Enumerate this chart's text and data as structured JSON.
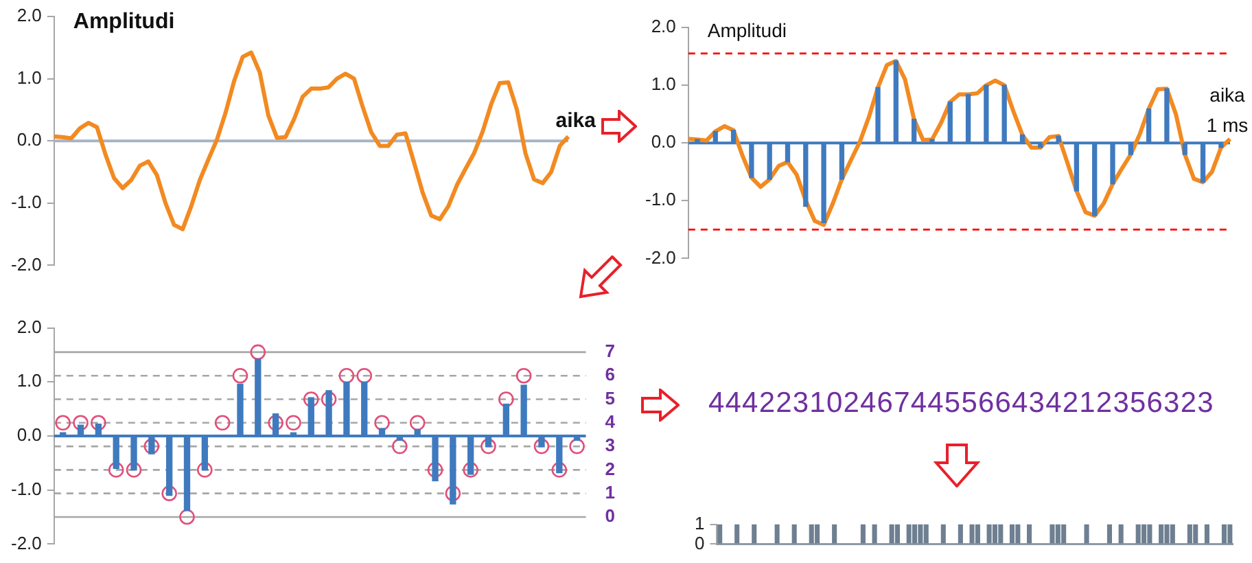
{
  "chart_data": [
    {
      "type": "line",
      "title": "Amplitudi",
      "xlabel": "aika",
      "color": "#f28a22",
      "marker": "none",
      "categories": [
        null,
        null,
        null,
        null,
        null,
        null,
        null,
        null,
        null,
        null,
        null,
        null,
        null,
        null,
        null,
        null,
        null,
        null,
        null,
        null,
        null,
        null,
        null,
        null,
        null,
        null,
        null,
        null,
        null,
        null,
        null,
        null,
        null,
        null,
        null,
        null,
        null,
        null,
        null,
        null,
        null,
        null,
        null,
        null,
        null,
        null,
        null,
        null,
        null,
        null,
        null,
        null,
        null,
        null,
        null,
        null,
        null,
        null,
        null,
        null,
        null
      ],
      "values": [
        0.07,
        0.06,
        0.04,
        0.2,
        0.29,
        0.22,
        -0.22,
        -0.6,
        -0.76,
        -0.63,
        -0.4,
        -0.33,
        -0.55,
        -1.0,
        -1.35,
        -1.42,
        -1.05,
        -0.63,
        -0.3,
        0.02,
        0.45,
        0.96,
        1.35,
        1.42,
        1.1,
        0.41,
        0.05,
        0.06,
        0.35,
        0.71,
        0.84,
        0.84,
        0.86,
        1.0,
        1.08,
        1.0,
        0.55,
        0.14,
        -0.08,
        -0.08,
        0.1,
        0.12,
        -0.35,
        -0.83,
        -1.2,
        -1.26,
        -1.05,
        -0.71,
        -0.45,
        -0.2,
        0.15,
        0.59,
        0.93,
        0.94,
        0.5,
        -0.2,
        -0.62,
        -0.68,
        -0.5,
        -0.08,
        0.07
      ],
      "ref_lines": [
        {
          "axis": "y",
          "value": 0,
          "color": "#a6b4c4",
          "line_style": "solid"
        }
      ],
      "ylim": [
        -2,
        2
      ],
      "yticks": [
        {
          "value": -2,
          "label": "-2.0"
        },
        {
          "value": -1,
          "label": "-1.0"
        },
        {
          "value": 0,
          "label": "0.0"
        },
        {
          "value": 1,
          "label": "1.0"
        },
        {
          "value": 2,
          "label": "2.0"
        }
      ],
      "tick_labels": "y",
      "grid": false,
      "legend": false
    },
    {
      "type": "line",
      "title": "Amplitudi",
      "xlabel": "aika\n1 ms",
      "marker": "none",
      "categories": [
        null,
        null,
        null,
        null,
        null,
        null,
        null,
        null,
        null,
        null,
        null,
        null,
        null,
        null,
        null,
        null,
        null,
        null,
        null,
        null,
        null,
        null,
        null,
        null,
        null,
        null,
        null,
        null,
        null,
        null,
        null,
        null,
        null,
        null,
        null,
        null,
        null,
        null,
        null,
        null,
        null,
        null,
        null,
        null,
        null,
        null,
        null,
        null,
        null,
        null,
        null,
        null,
        null,
        null,
        null,
        null,
        null,
        null,
        null,
        null,
        null
      ],
      "series": [
        {
          "type": "bar",
          "color": "#3f7abf",
          "values": [
            null,
            0.06,
            null,
            0.2,
            null,
            0.22,
            null,
            -0.6,
            null,
            -0.63,
            null,
            -0.33,
            null,
            -1.1,
            null,
            -1.38,
            null,
            -0.63,
            null,
            null,
            null,
            0.96,
            null,
            1.42,
            null,
            0.41,
            null,
            0.06,
            null,
            0.71,
            null,
            0.84,
            null,
            1,
            null,
            1,
            null,
            0.14,
            null,
            -0.08,
            null,
            0.12,
            null,
            -0.83,
            null,
            -1.26,
            null,
            -0.71,
            null,
            -0.2,
            null,
            0.59,
            null,
            0.94,
            null,
            -0.2,
            null,
            -0.68,
            null,
            -0.08,
            null
          ]
        },
        {
          "type": "line",
          "color": "#f28a22",
          "values": [
            0.07,
            0.06,
            0.04,
            0.2,
            0.29,
            0.22,
            -0.22,
            -0.6,
            -0.76,
            -0.63,
            -0.4,
            -0.33,
            -0.55,
            -1.0,
            -1.35,
            -1.42,
            -1.05,
            -0.63,
            -0.3,
            0.02,
            0.45,
            0.96,
            1.35,
            1.42,
            1.1,
            0.41,
            0.05,
            0.06,
            0.35,
            0.71,
            0.84,
            0.84,
            0.86,
            1.0,
            1.08,
            1.0,
            0.55,
            0.14,
            -0.08,
            -0.08,
            0.1,
            0.12,
            -0.35,
            -0.83,
            -1.2,
            -1.26,
            -1.05,
            -0.71,
            -0.45,
            -0.2,
            0.15,
            0.59,
            0.93,
            0.94,
            0.5,
            -0.2,
            -0.62,
            -0.68,
            -0.5,
            -0.08,
            0.07
          ]
        }
      ],
      "ref_lines": [
        {
          "axis": "y",
          "value": 0,
          "color": "#3f7abf",
          "line_style": "solid"
        },
        {
          "axis": "y",
          "value": 1.55,
          "color": "#ff0000",
          "line_style": "dashed"
        },
        {
          "axis": "y",
          "value": -1.5,
          "color": "#ff0000",
          "line_style": "dashed"
        }
      ],
      "ylim": [
        -2,
        2
      ],
      "yticks": [
        {
          "value": -2,
          "label": "-2.0"
        },
        {
          "value": -1,
          "label": "-1.0"
        },
        {
          "value": 0,
          "label": "0.0"
        },
        {
          "value": 1,
          "label": "1.0"
        },
        {
          "value": 2,
          "label": "2.0"
        }
      ],
      "tick_labels": "y",
      "grid": false,
      "legend": false
    },
    {
      "type": "bar",
      "marker": "circle",
      "categories": [
        null,
        null,
        null,
        null,
        null,
        null,
        null,
        null,
        null,
        null,
        null,
        null,
        null,
        null,
        null,
        null,
        null,
        null,
        null,
        null,
        null,
        null,
        null,
        null,
        null,
        null,
        null,
        null,
        null,
        null
      ],
      "series": [
        {
          "type": "bar",
          "color": "#3f7abf",
          "values": [
            0.06,
            0.2,
            0.22,
            -0.6,
            -0.63,
            -0.33,
            -1.1,
            -1.38,
            -0.63,
            null,
            0.96,
            1.42,
            0.41,
            0.06,
            0.71,
            0.84,
            1,
            1,
            0.14,
            -0.08,
            0.12,
            -0.83,
            -1.26,
            -0.71,
            -0.2,
            0.59,
            0.94,
            -0.2,
            -0.68,
            -0.08
          ]
        },
        {
          "type": "scatter",
          "color": "#e0507a",
          "axis": "y2",
          "values": [
            4,
            4,
            4,
            2,
            2,
            3,
            1,
            0,
            2,
            4,
            6,
            7,
            4,
            4,
            5,
            5,
            6,
            6,
            4,
            3,
            4,
            2,
            1,
            2,
            3,
            5,
            6,
            3,
            2,
            3
          ]
        }
      ],
      "ref_lines": [
        {
          "axis": "y2",
          "value": 0,
          "color": "#a6a6a6",
          "line_style": "solid"
        },
        {
          "axis": "y2",
          "value": 1,
          "color": "#a6a6a6",
          "line_style": "dashed"
        },
        {
          "axis": "y2",
          "value": 2,
          "color": "#a6a6a6",
          "line_style": "dashed"
        },
        {
          "axis": "y2",
          "value": 3,
          "color": "#a6a6a6",
          "line_style": "dashed"
        },
        {
          "axis": "y2",
          "value": 4,
          "color": "#a6a6a6",
          "line_style": "dashed"
        },
        {
          "axis": "y2",
          "value": 5,
          "color": "#a6a6a6",
          "line_style": "dashed"
        },
        {
          "axis": "y2",
          "value": 6,
          "color": "#a6a6a6",
          "line_style": "dashed"
        },
        {
          "axis": "y2",
          "value": 7,
          "color": "#a6a6a6",
          "line_style": "solid"
        },
        {
          "axis": "y",
          "value": 0,
          "color": "#3f7abf",
          "line_style": "solid"
        }
      ],
      "ylim": [
        -2,
        2
      ],
      "yticks": [
        {
          "value": -2,
          "label": "-2.0"
        },
        {
          "value": -1,
          "label": "-1.0"
        },
        {
          "value": 0,
          "label": "0.0"
        },
        {
          "value": 1,
          "label": "1.0"
        },
        {
          "value": 2,
          "label": "2.0"
        }
      ],
      "y2lim": [
        -1.15,
        8.03
      ],
      "y2ticks": [
        0,
        1,
        2,
        3,
        4,
        5,
        6,
        7
      ],
      "tick_labels": "y",
      "grid": false,
      "legend": false
    },
    {
      "type": "other",
      "annotations": [
        "444223102467445566434212356323"
      ]
    },
    {
      "type": "bar",
      "color": "#6e7f91",
      "categories": [
        null,
        null,
        null,
        null,
        null,
        null,
        null,
        null,
        null,
        null,
        null,
        null,
        null,
        null,
        null,
        null,
        null,
        null,
        null,
        null,
        null,
        null,
        null,
        null,
        null,
        null,
        null,
        null,
        null,
        null,
        null,
        null,
        null,
        null,
        null,
        null,
        null,
        null,
        null,
        null,
        null,
        null,
        null,
        null,
        null,
        null,
        null,
        null,
        null,
        null,
        null,
        null,
        null,
        null,
        null,
        null,
        null,
        null,
        null,
        null,
        null,
        null,
        null,
        null,
        null,
        null,
        null,
        null,
        null,
        null,
        null,
        null,
        null,
        null,
        null,
        null,
        null,
        null,
        null,
        null,
        null,
        null,
        null,
        null,
        null,
        null,
        null,
        null,
        null,
        null
      ],
      "values": [
        1,
        0,
        0,
        1,
        0,
        0,
        1,
        0,
        0,
        0,
        1,
        0,
        0,
        1,
        0,
        0,
        1,
        1,
        0,
        0,
        1,
        0,
        0,
        0,
        0,
        1,
        0,
        1,
        0,
        0,
        1,
        1,
        0,
        1,
        1,
        1,
        1,
        0,
        0,
        1,
        0,
        0,
        1,
        0,
        1,
        1,
        0,
        1,
        1,
        1,
        0,
        1,
        1,
        0,
        1,
        0,
        0,
        0,
        1,
        1,
        1,
        0,
        0,
        0,
        1,
        0,
        0,
        0,
        1,
        0,
        1,
        0,
        0,
        1,
        1,
        1,
        0,
        1,
        1,
        1,
        0,
        0,
        1,
        1,
        0,
        1,
        0,
        0,
        1,
        1
      ],
      "ylim": [
        0,
        1
      ],
      "yticks": [
        0,
        1
      ],
      "tick_labels": "y",
      "grid": false,
      "legend": false
    }
  ]
}
